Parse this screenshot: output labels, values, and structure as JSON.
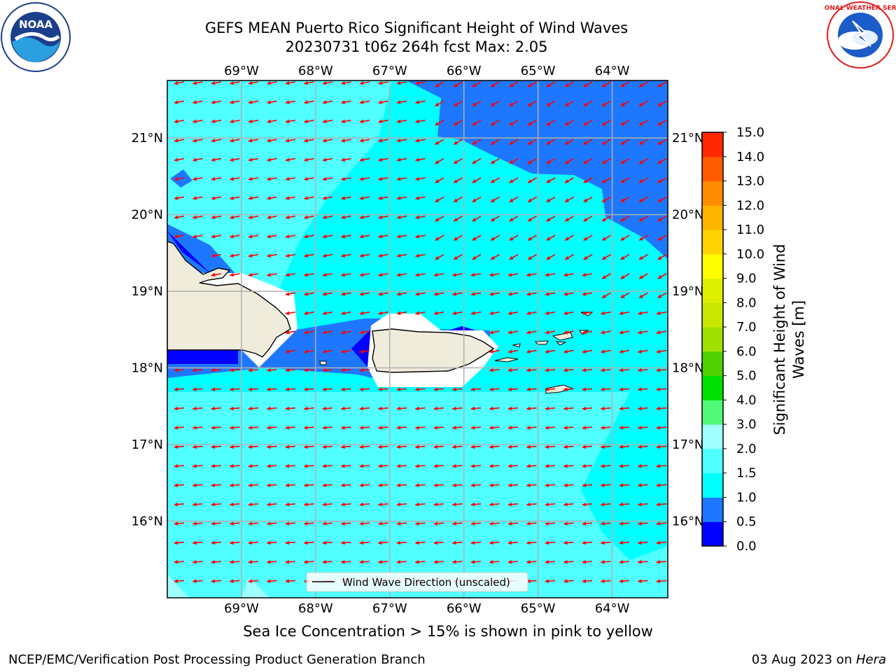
{
  "title_line1": "GEFS MEAN Puerto Rico Significant Height of Wind Waves",
  "title_line2": "20230731 t06z 264h fcst   Max: 2.05",
  "subtitle": "Sea Ice Concentration > 15% is shown in pink to yellow",
  "footer_left": "NCEP/EMC/Verification Post Processing Product Generation Branch",
  "footer_date": "03 Aug 2023 on ",
  "footer_machine": "Hera",
  "legend_label": "Wind Wave Direction (unscaled)",
  "logos": {
    "left": "NOAA",
    "right": "NATIONAL WEATHER SERVICE"
  },
  "colorbar": {
    "title": "Significant Height of Wind Waves [m]",
    "ticks": [
      "0.0",
      "0.5",
      "1.0",
      "1.5",
      "2.0",
      "3.0",
      "4.0",
      "5.0",
      "6.0",
      "7.0",
      "8.0",
      "9.0",
      "10.0",
      "11.0",
      "12.0",
      "13.0",
      "14.0",
      "15.0"
    ],
    "colors": [
      "#0000ff",
      "#1e78ff",
      "#00ffff",
      "#50ffff",
      "#a0ffff",
      "#50fa78",
      "#00e000",
      "#50d000",
      "#a0e000",
      "#c8e600",
      "#dcf000",
      "#ffff00",
      "#ffd200",
      "#ffb400",
      "#ff8c00",
      "#ff5a00",
      "#ff2800"
    ]
  },
  "map": {
    "lon_labels": [
      "69°W",
      "68°W",
      "67°W",
      "66°W",
      "65°W",
      "64°W"
    ],
    "lat_labels": [
      "21°N",
      "20°N",
      "19°N",
      "18°N",
      "17°N",
      "16°N"
    ],
    "lon_range": [
      -70.0,
      -63.25
    ],
    "lat_range": [
      15.0,
      21.75
    ],
    "arrow_color": "#ff0000",
    "land_color": "#efecdc"
  }
}
